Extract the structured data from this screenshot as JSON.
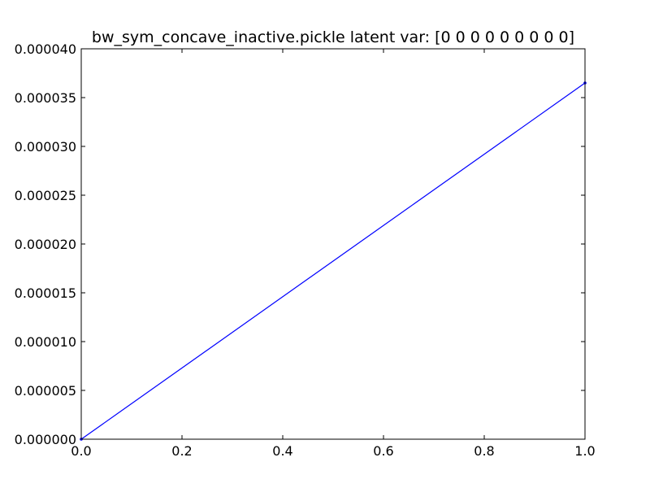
{
  "chart_data": {
    "type": "line",
    "title": "bw_sym_concave_inactive.pickle latent var: [0 0 0 0 0 0 0 0 0]",
    "xlabel": "",
    "ylabel": "",
    "xlim": [
      0.0,
      1.0
    ],
    "ylim": [
      0.0,
      4e-05
    ],
    "xticks": [
      "0.0",
      "0.2",
      "0.4",
      "0.6",
      "0.8",
      "1.0"
    ],
    "yticks": [
      "0.000000",
      "0.000005",
      "0.000010",
      "0.000015",
      "0.000020",
      "0.000025",
      "0.000030",
      "0.000035",
      "0.000040"
    ],
    "grid": false,
    "series": [
      {
        "color": "#0000ff",
        "x": [
          0.0,
          1.0
        ],
        "y": [
          0.0,
          3.65e-05
        ]
      }
    ]
  }
}
